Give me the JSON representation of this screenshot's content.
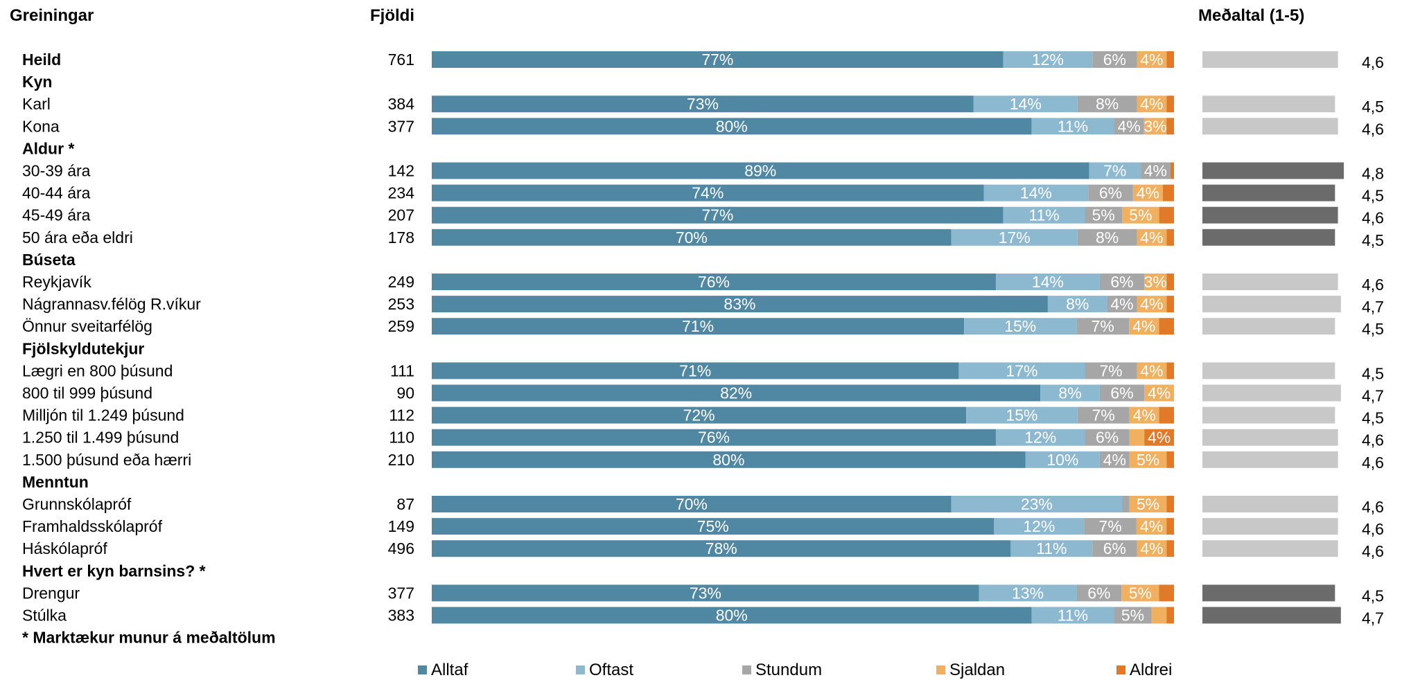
{
  "headers": {
    "category": "Greiningar",
    "count": "Fjöldi",
    "mean": "Meðaltal (1-5)"
  },
  "footnote": "* Marktækur munur á meðaltölum",
  "chart_data": {
    "type": "bar",
    "stacked": true,
    "orientation": "horizontal",
    "series": [
      {
        "name": "Alltaf",
        "color": "#5087a3"
      },
      {
        "name": "Oftast",
        "color": "#8cb8d0"
      },
      {
        "name": "Stundum",
        "color": "#a6a6a6"
      },
      {
        "name": "Sjaldan",
        "color": "#f0b060"
      },
      {
        "name": "Aldrei",
        "color": "#e07a28"
      }
    ],
    "mean_colors": {
      "normal": "#c8c8c8",
      "significant": "#6b6b6b"
    },
    "mean_range": [
      1,
      5
    ],
    "rows": [
      {
        "kind": "data",
        "label": "Heild",
        "bold": true,
        "count": "761",
        "values": [
          77,
          12,
          6,
          4,
          1
        ],
        "labels": [
          "77%",
          "12%",
          "6%",
          "4%",
          ""
        ],
        "mean": 4.6,
        "mean_label": "4,6",
        "significant": false
      },
      {
        "kind": "group",
        "label": "Kyn"
      },
      {
        "kind": "data",
        "label": "Karl",
        "count": "384",
        "values": [
          73,
          14,
          8,
          4,
          1
        ],
        "labels": [
          "73%",
          "14%",
          "8%",
          "4%",
          ""
        ],
        "mean": 4.5,
        "mean_label": "4,5",
        "significant": false
      },
      {
        "kind": "data",
        "label": "Kona",
        "count": "377",
        "values": [
          80,
          11,
          4,
          3,
          1
        ],
        "labels": [
          "80%",
          "11%",
          "4%",
          "3%",
          ""
        ],
        "mean": 4.6,
        "mean_label": "4,6",
        "significant": false
      },
      {
        "kind": "group",
        "label": "Aldur *"
      },
      {
        "kind": "data",
        "label": "30-39 ára",
        "count": "142",
        "values": [
          89,
          7,
          4,
          0,
          0.5
        ],
        "labels": [
          "89%",
          "7%",
          "4%",
          "",
          ""
        ],
        "mean": 4.8,
        "mean_label": "4,8",
        "significant": true
      },
      {
        "kind": "data",
        "label": "40-44 ára",
        "count": "234",
        "values": [
          74,
          14,
          6,
          4,
          1.5
        ],
        "labels": [
          "74%",
          "14%",
          "6%",
          "4%",
          ""
        ],
        "mean": 4.5,
        "mean_label": "4,5",
        "significant": true
      },
      {
        "kind": "data",
        "label": "45-49 ára",
        "count": "207",
        "values": [
          77,
          11,
          5,
          5,
          2
        ],
        "labels": [
          "77%",
          "11%",
          "5%",
          "5%",
          ""
        ],
        "mean": 4.6,
        "mean_label": "4,6",
        "significant": true
      },
      {
        "kind": "data",
        "label": "50 ára eða eldri",
        "count": "178",
        "values": [
          70,
          17,
          8,
          4,
          1
        ],
        "labels": [
          "70%",
          "17%",
          "8%",
          "4%",
          ""
        ],
        "mean": 4.5,
        "mean_label": "4,5",
        "significant": true
      },
      {
        "kind": "group",
        "label": "Búseta"
      },
      {
        "kind": "data",
        "label": "Reykjavík",
        "count": "249",
        "values": [
          76,
          14,
          6,
          3,
          1
        ],
        "labels": [
          "76%",
          "14%",
          "6%",
          "3%",
          ""
        ],
        "mean": 4.6,
        "mean_label": "4,6",
        "significant": false
      },
      {
        "kind": "data",
        "label": "Nágrannasv.félög R.víkur",
        "count": "253",
        "values": [
          83,
          8,
          4,
          4,
          1
        ],
        "labels": [
          "83%",
          "8%",
          "4%",
          "4%",
          ""
        ],
        "mean": 4.7,
        "mean_label": "4,7",
        "significant": false
      },
      {
        "kind": "data",
        "label": "Önnur sveitarfélög",
        "count": "259",
        "values": [
          71,
          15,
          7,
          4,
          2
        ],
        "labels": [
          "71%",
          "15%",
          "7%",
          "4%",
          ""
        ],
        "mean": 4.5,
        "mean_label": "4,5",
        "significant": false
      },
      {
        "kind": "group",
        "label": "Fjölskyldutekjur"
      },
      {
        "kind": "data",
        "label": "Lægri en 800 þúsund",
        "count": "111",
        "values": [
          71,
          17,
          7,
          4,
          1
        ],
        "labels": [
          "71%",
          "17%",
          "7%",
          "4%",
          ""
        ],
        "mean": 4.5,
        "mean_label": "4,5",
        "significant": false
      },
      {
        "kind": "data",
        "label": "800 til 999 þúsund",
        "count": "90",
        "values": [
          82,
          8,
          6,
          4,
          0
        ],
        "labels": [
          "82%",
          "8%",
          "6%",
          "4%",
          ""
        ],
        "mean": 4.7,
        "mean_label": "4,7",
        "significant": false
      },
      {
        "kind": "data",
        "label": "Milljón til 1.249 þúsund",
        "count": "112",
        "values": [
          72,
          15,
          7,
          4,
          2
        ],
        "labels": [
          "72%",
          "15%",
          "7%",
          "4%",
          ""
        ],
        "mean": 4.5,
        "mean_label": "4,5",
        "significant": false
      },
      {
        "kind": "data",
        "label": "1.250 til 1.499 þúsund",
        "count": "110",
        "values": [
          76,
          12,
          6,
          2,
          4
        ],
        "labels": [
          "76%",
          "12%",
          "6%",
          "",
          "4%"
        ],
        "mean": 4.6,
        "mean_label": "4,6",
        "significant": false
      },
      {
        "kind": "data",
        "label": "1.500 þúsund eða hærri",
        "count": "210",
        "values": [
          80,
          10,
          4,
          5,
          1
        ],
        "labels": [
          "80%",
          "10%",
          "4%",
          "5%",
          ""
        ],
        "mean": 4.6,
        "mean_label": "4,6",
        "significant": false
      },
      {
        "kind": "group",
        "label": "Menntun"
      },
      {
        "kind": "data",
        "label": "Grunnskólapróf",
        "count": "87",
        "values": [
          70,
          23,
          1,
          5,
          1
        ],
        "labels": [
          "70%",
          "23%",
          "",
          "5%",
          ""
        ],
        "mean": 4.6,
        "mean_label": "4,6",
        "significant": false
      },
      {
        "kind": "data",
        "label": "Framhaldsskólapróf",
        "count": "149",
        "values": [
          75,
          12,
          7,
          4,
          1
        ],
        "labels": [
          "75%",
          "12%",
          "7%",
          "4%",
          ""
        ],
        "mean": 4.6,
        "mean_label": "4,6",
        "significant": false
      },
      {
        "kind": "data",
        "label": "Háskólapróf",
        "count": "496",
        "values": [
          78,
          11,
          6,
          4,
          1
        ],
        "labels": [
          "78%",
          "11%",
          "6%",
          "4%",
          ""
        ],
        "mean": 4.6,
        "mean_label": "4,6",
        "significant": false
      },
      {
        "kind": "group",
        "label": "Hvert er kyn barnsins? *"
      },
      {
        "kind": "data",
        "label": "Drengur",
        "count": "377",
        "values": [
          73,
          13,
          6,
          5,
          2
        ],
        "labels": [
          "73%",
          "13%",
          "6%",
          "5%",
          ""
        ],
        "mean": 4.5,
        "mean_label": "4,5",
        "significant": true
      },
      {
        "kind": "data",
        "label": "Stúlka",
        "count": "383",
        "values": [
          80,
          11,
          5,
          2,
          1
        ],
        "labels": [
          "80%",
          "11%",
          "5%",
          "",
          ""
        ],
        "mean": 4.7,
        "mean_label": "4,7",
        "significant": true
      }
    ]
  }
}
